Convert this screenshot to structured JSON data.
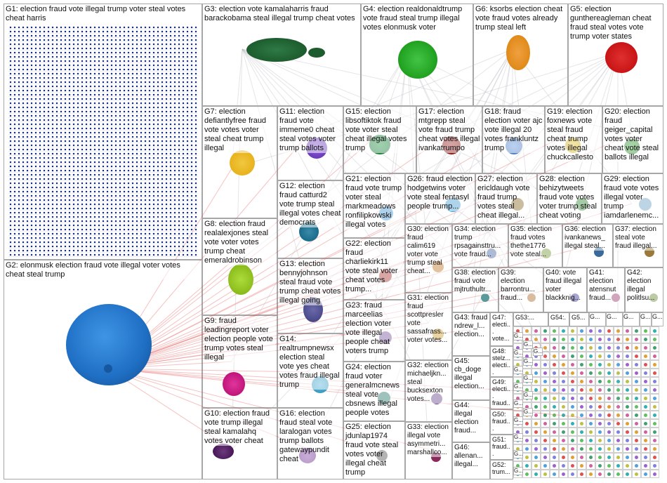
{
  "groups": [
    {
      "id": "G1",
      "label": "G1: election fraud vote illegal trump voter steal votes cheat harris",
      "color": "#1b2f7a"
    },
    {
      "id": "G2",
      "label": "G2: elonmusk election fraud vote illegal voter votes cheat steal trump",
      "color": "#1f6fc4"
    },
    {
      "id": "G3",
      "label": "G3: election vote kamalaharris fraud barackobama steal illegal trump cheat votes",
      "color": "#1d5c2e"
    },
    {
      "id": "G4",
      "label": "G4: election realdonaldtrump vote fraud steal trump illegal votes elonmusk voter",
      "color": "#22a322"
    },
    {
      "id": "G6",
      "label": "G6: ksorbs election cheat vote fraud votes already trump steal left",
      "color": "#e08a1a"
    },
    {
      "id": "G5",
      "label": "G5: election gunthereagleman cheat fraud steal votes vote trump voter states",
      "color": "#c81414"
    },
    {
      "id": "G7",
      "label": "G7: election defiantlyfree fraud vote votes voter steal cheat trump illegal",
      "color": "#e8b21c"
    },
    {
      "id": "G11",
      "label": "G11: election fraud vote immeme0 cheat steal votes voter trump ballots",
      "color": "#6a3ab8"
    },
    {
      "id": "G15",
      "label": "G15: election libsoftiktok fraud vote voter steal cheat illegal votes trump",
      "color": "#1a7a3a"
    },
    {
      "id": "G17",
      "label": "G17: election mtgrepp steal vote fraud trump cheat votes illegal ivankatrumpo",
      "color": "#8a1a1a"
    },
    {
      "id": "G18",
      "label": "G18: fraud election voter ajc vote illegal 20 votes frankluntz trump",
      "color": "#4a7ac0"
    },
    {
      "id": "G19",
      "label": "G19: election foxnews vote steal fraud cheat trump votes illegal chuckcallesto",
      "color": "#d0b020"
    },
    {
      "id": "G20",
      "label": "G20: election fraud geiger_capital votes voter cheat vote steal ballots illegal",
      "color": "#2a8a2a"
    },
    {
      "id": "G12",
      "label": "G12: election fraud catturd2 vote trump steal illegal votes cheat democrats",
      "color": "#1a6a8a"
    },
    {
      "id": "G8",
      "label": "G8: election fraud realalexjones steal vote voter votes trump cheat emeraldrobinson",
      "color": "#8cbc1c"
    },
    {
      "id": "G13",
      "label": "G13: election bennyjohnson steal fraud vote trump cheat votes illegal going",
      "color": "#4a4a8a"
    },
    {
      "id": "G9",
      "label": "G9: fraud leadingreport voter election people vote trump votes steal illegal",
      "color": "#c0157a"
    },
    {
      "id": "G14",
      "label": "G14: realtrumpnewsx election steal vote yes cheat votes fraud illegal trump",
      "color": "#3a9ac0"
    },
    {
      "id": "G10",
      "label": "G10: election fraud vote trump illegal steal kamalahq votes voter cheat",
      "color": "#4a1a5a"
    },
    {
      "id": "G16",
      "label": "G16: election fraud steal vote laralogan votes trump ballots gatewaypundit cheat",
      "color": "#6a2a8a"
    },
    {
      "id": "G21",
      "label": "G21: election fraud vote trump voter steal markmeadows ronfilipkowski illegal votes",
      "color": "#4a9ad0"
    },
    {
      "id": "G22",
      "label": "G22: election fraud charliekirk11 vote steal voter cheat votes trump...",
      "color": "#aa3a3a"
    },
    {
      "id": "G23",
      "label": "G23: fraud marceelias election voter vote illegal people cheat voters trump",
      "color": "#7a5aa0"
    },
    {
      "id": "G24",
      "label": "G24: election fraud voter generalmcnews steal vote cbsnews illegal people votes",
      "color": "#2a7a6a"
    },
    {
      "id": "G25",
      "label": "G25: election jdunlap1974 fraud vote steal votes voter illegal cheat trump",
      "color": "#5a5a5a"
    },
    {
      "id": "G26",
      "label": "G26: fraud election hodgetwins voter vote steal fentasyl people trump...",
      "color": "#4aa0d0"
    },
    {
      "id": "G27",
      "label": "G27: election ericldaugh vote fraud trump votes steal cheat illegal...",
      "color": "#8a6a2a"
    },
    {
      "id": "G28",
      "label": "G28: election behizytweets fraud vote votes voter trump steal cheat voting",
      "color": "#3a8a3a"
    },
    {
      "id": "G29",
      "label": "G29: election fraud vote votes illegal voter trump iamdarlenemc...",
      "color": "#6aa0c0"
    },
    {
      "id": "G30",
      "label": "G30: election fraud calim619 voter vote trump steal cheat...",
      "color": "#c07a2a"
    },
    {
      "id": "G31",
      "label": "G31: election fraud scottpresler vote sassafrass... voter votes...",
      "color": "#d0a030"
    },
    {
      "id": "G32",
      "label": "G32: election michaeljkn... steal bucksexton votes...",
      "color": "#6a4a8a"
    },
    {
      "id": "G33",
      "label": "G33: election illegal vote asymmetri... marshallco...",
      "color": "#8a2a5a"
    },
    {
      "id": "G34",
      "label": "G34: election trump rpsagainsttru... vote fraud...",
      "color": "#4a6aa0"
    },
    {
      "id": "G35",
      "label": "G35: election fraud votes thethe1776 vote steal...",
      "color": "#7a9a3a"
    },
    {
      "id": "G36",
      "label": "G36: election ivankanews_ illegal steal...",
      "color": "#3a6a9a"
    },
    {
      "id": "G37",
      "label": "G37: election steal vote fraud illegal...",
      "color": "#9a7a3a"
    },
    {
      "id": "G38",
      "label": "G38: election fraud vote mjtruthultr...",
      "color": "#5a9a9a"
    },
    {
      "id": "G39",
      "label": "G39: election barrontru... fraud...",
      "color": "#aa6a2a"
    },
    {
      "id": "G40",
      "label": "G40: vote fraud illegal voter blackknig...",
      "color": "#3a3a9a"
    },
    {
      "id": "G41",
      "label": "G41: election atensnut fraud...",
      "color": "#9a3a6a"
    },
    {
      "id": "G42",
      "label": "G42: election illegal politlsu...",
      "color": "#6a8a3a"
    },
    {
      "id": "G43",
      "label": "G43: fraud ndrew_l... election...",
      "color": "#3a7aaa"
    },
    {
      "id": "G44",
      "label": "G44: illegal election fraud...",
      "color": "#8a5a3a"
    },
    {
      "id": "G45",
      "label": "G45: cb_doge illegal election...",
      "color": "#5a3a8a"
    },
    {
      "id": "G46",
      "label": "G46: allenan... illegal...",
      "color": "#7a7a7a"
    },
    {
      "id": "G47",
      "label": "G47: electi... vote...",
      "color": "#aa2a2a"
    },
    {
      "id": "G48",
      "label": "G48: stelz... electi...",
      "color": "#2a5a9a"
    },
    {
      "id": "G49",
      "label": "G49: electi... fraud...",
      "color": "#9a5a2a"
    },
    {
      "id": "G50",
      "label": "G50: fraud...",
      "color": "#3a9a5a"
    },
    {
      "id": "G51",
      "label": "G51: fraud...",
      "color": "#5a5aaa"
    },
    {
      "id": "G52",
      "label": "G52: trum...",
      "color": "#aa5a7a"
    },
    {
      "id": "G53",
      "label": "G53:...",
      "color": "#3a6a5a"
    },
    {
      "id": "G54",
      "label": "G54:...",
      "color": "#8a8a3a"
    },
    {
      "id": "G55",
      "label": "G5...",
      "color": "#5a8aaa"
    }
  ],
  "small_labels": [
    "G...",
    "G...",
    "G...",
    "G...",
    "G...",
    "G...",
    "G...",
    "G...",
    "G...",
    "G...",
    "G...",
    "G...",
    "G...",
    "G...",
    "G...",
    "G...",
    "G...",
    "G...",
    "G...",
    "G..."
  ]
}
